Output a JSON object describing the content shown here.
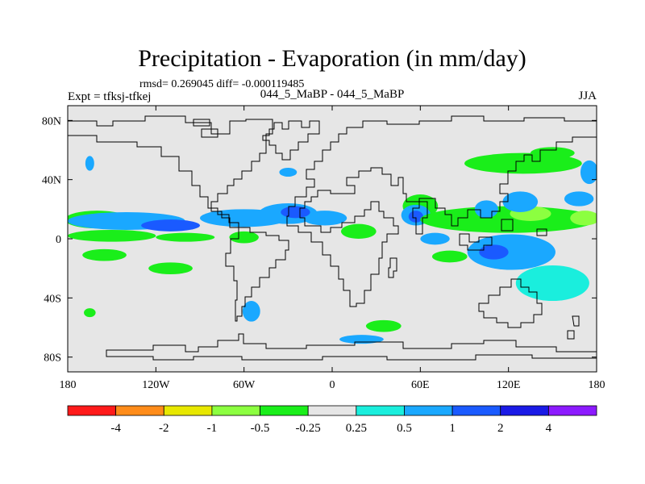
{
  "chart_data": {
    "type": "map-contour",
    "title": "Precipitation - Evaporation (in mm/day)",
    "stats_text": "rmsd= 0.269045 diff= -0.000119485",
    "experiment_label": "Expt = tfksj-tfkej",
    "case_label": "044_5_MaBP - 044_5_MaBP",
    "season": "JJA",
    "x_ticks": [
      {
        "value": -180,
        "label": "180"
      },
      {
        "value": -120,
        "label": "120W"
      },
      {
        "value": -60,
        "label": "60W"
      },
      {
        "value": 0,
        "label": "0"
      },
      {
        "value": 60,
        "label": "60E"
      },
      {
        "value": 120,
        "label": "120E"
      },
      {
        "value": 180,
        "label": "180"
      }
    ],
    "y_ticks": [
      {
        "value": 80,
        "label": "80N"
      },
      {
        "value": 40,
        "label": "40N"
      },
      {
        "value": 0,
        "label": "0"
      },
      {
        "value": -40,
        "label": "40S"
      },
      {
        "value": -80,
        "label": "80S"
      }
    ],
    "xlim": [
      -180,
      180
    ],
    "ylim": [
      -90,
      90
    ],
    "background_color": "#e6e6e6",
    "colorbar": {
      "colors": [
        "#ff1a1a",
        "#ff8c1a",
        "#e8e800",
        "#8cff40",
        "#1aee1a",
        "#e6e6e6",
        "#1aeedd",
        "#1aa8ff",
        "#1a5aff",
        "#1a1ae6",
        "#8c1aff"
      ],
      "labels": [
        "-4",
        "-2",
        "-1",
        "-0.5",
        "-0.25",
        "0.25",
        "0.5",
        "1",
        "2",
        "4"
      ]
    },
    "blobs": [
      {
        "lon": -160,
        "lat": 13,
        "rx": 22,
        "ry": 6,
        "level": "-0.25"
      },
      {
        "lon": -140,
        "lat": 12,
        "rx": 40,
        "ry": 6,
        "level": "0.5"
      },
      {
        "lon": -110,
        "lat": 9,
        "rx": 20,
        "ry": 4,
        "level": "1"
      },
      {
        "lon": -60,
        "lat": 14,
        "rx": 30,
        "ry": 6,
        "level": "0.5"
      },
      {
        "lon": -30,
        "lat": 17,
        "rx": 20,
        "ry": 7,
        "level": "0.5"
      },
      {
        "lon": -5,
        "lat": 14,
        "rx": 15,
        "ry": 5,
        "level": "0.5"
      },
      {
        "lon": -25,
        "lat": 18,
        "rx": 10,
        "ry": 4,
        "level": "1"
      },
      {
        "lon": -150,
        "lat": 2,
        "rx": 30,
        "ry": 4,
        "level": "-0.25"
      },
      {
        "lon": -100,
        "lat": 1,
        "rx": 20,
        "ry": 3,
        "level": "-0.25"
      },
      {
        "lon": -155,
        "lat": -11,
        "rx": 15,
        "ry": 4,
        "level": "-0.25"
      },
      {
        "lon": -110,
        "lat": -20,
        "rx": 15,
        "ry": 4,
        "level": "-0.25"
      },
      {
        "lon": -60,
        "lat": 1,
        "rx": 10,
        "ry": 4,
        "level": "-0.25"
      },
      {
        "lon": 18,
        "lat": 5,
        "rx": 12,
        "ry": 5,
        "level": "-0.25"
      },
      {
        "lon": -55,
        "lat": -49,
        "rx": 4,
        "ry": 5,
        "level": "1"
      },
      {
        "lon": -55,
        "lat": -49,
        "rx": 6,
        "ry": 7,
        "level": "0.5"
      },
      {
        "lon": -165,
        "lat": 51,
        "rx": 3,
        "ry": 5,
        "level": "0.5"
      },
      {
        "lon": -165,
        "lat": -50,
        "rx": 4,
        "ry": 3,
        "level": "-0.25"
      },
      {
        "lon": -30,
        "lat": 45,
        "rx": 6,
        "ry": 3,
        "level": "0.5"
      },
      {
        "lon": 60,
        "lat": 22,
        "rx": 12,
        "ry": 8,
        "level": "-0.25"
      },
      {
        "lon": 57,
        "lat": 16,
        "rx": 10,
        "ry": 7,
        "level": "0.5"
      },
      {
        "lon": 57,
        "lat": 15,
        "rx": 5,
        "ry": 4,
        "level": "1"
      },
      {
        "lon": 120,
        "lat": 13,
        "rx": 60,
        "ry": 9,
        "level": "-0.25"
      },
      {
        "lon": 135,
        "lat": 17,
        "rx": 14,
        "ry": 5,
        "level": "-0.5"
      },
      {
        "lon": 172,
        "lat": 14,
        "rx": 10,
        "ry": 5,
        "level": "-0.5"
      },
      {
        "lon": 105,
        "lat": 20,
        "rx": 8,
        "ry": 6,
        "level": "0.5"
      },
      {
        "lon": 128,
        "lat": 25,
        "rx": 12,
        "ry": 7,
        "level": "0.5"
      },
      {
        "lon": 168,
        "lat": 27,
        "rx": 10,
        "ry": 5,
        "level": "0.5"
      },
      {
        "lon": 130,
        "lat": 51,
        "rx": 40,
        "ry": 7,
        "level": "-0.25"
      },
      {
        "lon": 150,
        "lat": 58,
        "rx": 15,
        "ry": 4,
        "level": "-0.25"
      },
      {
        "lon": 175,
        "lat": 45,
        "rx": 6,
        "ry": 8,
        "level": "0.5"
      },
      {
        "lon": 122,
        "lat": -9,
        "rx": 30,
        "ry": 12,
        "level": "0.5"
      },
      {
        "lon": 110,
        "lat": -9,
        "rx": 10,
        "ry": 5,
        "level": "1"
      },
      {
        "lon": 150,
        "lat": -30,
        "rx": 25,
        "ry": 12,
        "level": "0.25"
      },
      {
        "lon": 80,
        "lat": -12,
        "rx": 12,
        "ry": 4,
        "level": "-0.25"
      },
      {
        "lon": 70,
        "lat": 0,
        "rx": 10,
        "ry": 4,
        "level": "0.5"
      },
      {
        "lon": 35,
        "lat": -59,
        "rx": 12,
        "ry": 4,
        "level": "-0.25"
      },
      {
        "lon": 20,
        "lat": -68,
        "rx": 15,
        "ry": 3,
        "level": "0.5"
      }
    ]
  }
}
